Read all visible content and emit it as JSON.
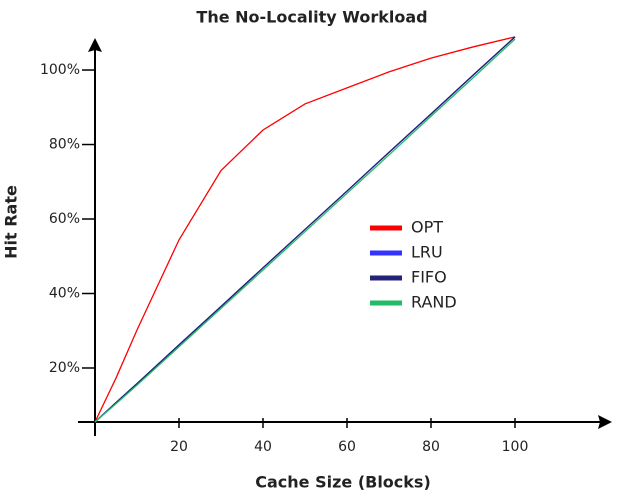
{
  "chart_data": {
    "type": "line",
    "title": "The No-Locality Workload",
    "x_label": "Cache Size (Blocks)",
    "y_label": "Hit Rate",
    "x": [
      0,
      5,
      10,
      20,
      30,
      40,
      50,
      60,
      70,
      80,
      90,
      100
    ],
    "series": [
      {
        "name": "OPT",
        "color": "#ff0000",
        "values": [
          5.5,
          17.3,
          30.2,
          54.4,
          73,
          83.9,
          90.9,
          95.2,
          99.5,
          103.2,
          106.2,
          108.9
        ]
      },
      {
        "name": "LRU",
        "color": "#3333ff",
        "values": [
          5.5,
          10.7,
          15.8,
          26.2,
          36.5,
          46.9,
          57.2,
          67.5,
          77.9,
          88.2,
          98.6,
          108.9
        ]
      },
      {
        "name": "FIFO",
        "color": "#222277",
        "values": [
          5.5,
          10.7,
          15.8,
          26.2,
          36.5,
          46.9,
          57.2,
          67.5,
          77.9,
          88.2,
          98.6,
          108.9
        ]
      },
      {
        "name": "RAND",
        "color": "#22bb66",
        "values": [
          5.5,
          10.4,
          15.4,
          25.7,
          36.0,
          46.3,
          56.6,
          66.9,
          77.2,
          87.6,
          97.9,
          108.3
        ]
      }
    ],
    "xlim": [
      0,
      123
    ],
    "ylim": [
      5.5,
      108.6
    ],
    "xticks": [
      20,
      40,
      60,
      80,
      100
    ],
    "yticks": [
      {
        "value": 20,
        "label": "20%"
      },
      {
        "value": 40,
        "label": "40%"
      },
      {
        "value": 60,
        "label": "60%"
      },
      {
        "value": 80,
        "label": "80%"
      },
      {
        "value": 100,
        "label": "100%"
      }
    ],
    "grid": false
  }
}
